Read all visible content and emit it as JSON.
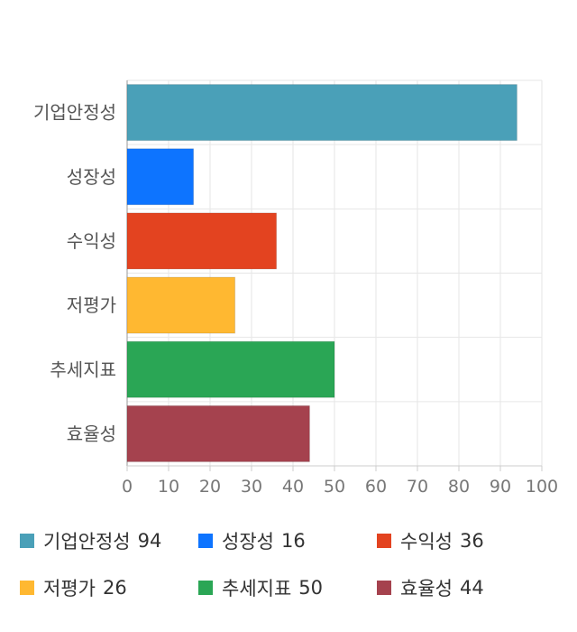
{
  "chart_data": {
    "type": "bar",
    "orientation": "horizontal",
    "categories": [
      "기업안정성",
      "성장성",
      "수익성",
      "저평가",
      "추세지표",
      "효율성"
    ],
    "values": [
      94,
      16,
      36,
      26,
      50,
      44
    ],
    "colors": [
      "#4aa0b8",
      "#0d74ff",
      "#e34320",
      "#ffb831",
      "#2aa655",
      "#a5424e"
    ],
    "xlim": [
      0,
      100
    ],
    "xticks": [
      0,
      10,
      20,
      30,
      40,
      50,
      60,
      70,
      80,
      90,
      100
    ],
    "grid": true,
    "legend_position": "bottom",
    "legend": [
      {
        "label": "기업안정성",
        "value": "94"
      },
      {
        "label": "성장성",
        "value": "16"
      },
      {
        "label": "수익성",
        "value": "36"
      },
      {
        "label": "저평가",
        "value": "26"
      },
      {
        "label": "추세지표",
        "value": "50"
      },
      {
        "label": "효율성",
        "value": "44"
      }
    ]
  }
}
